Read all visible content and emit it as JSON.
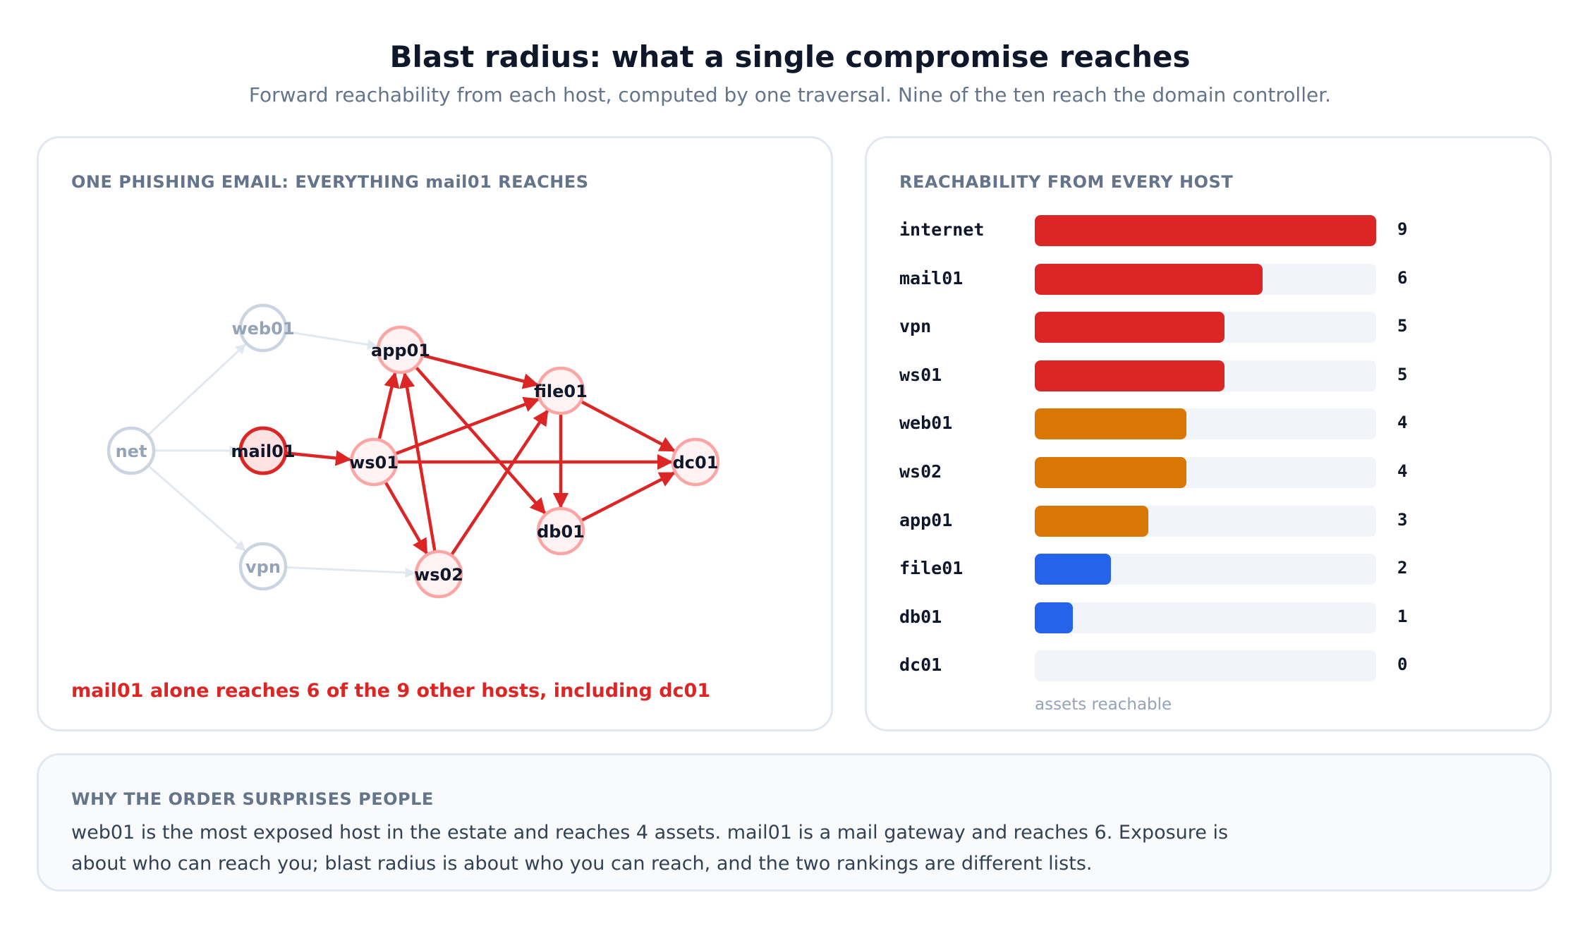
{
  "title": "Blast radius: what a single compromise reaches",
  "subtitle": "Forward reachability from each host, computed by one traversal. Nine of the ten reach the domain controller.",
  "graph_panel": {
    "heading": "ONE PHISHING EMAIL: EVERYTHING mail01 REACHES",
    "caption": "mail01 alone reaches 6 of the 9 other hosts, including dc01",
    "nodes": [
      {
        "id": "net",
        "label": "net",
        "state": "idle"
      },
      {
        "id": "web01",
        "label": "web01",
        "state": "idle"
      },
      {
        "id": "vpn",
        "label": "vpn",
        "state": "idle"
      },
      {
        "id": "mail01",
        "label": "mail01",
        "state": "source"
      },
      {
        "id": "app01",
        "label": "app01",
        "state": "reached"
      },
      {
        "id": "ws01",
        "label": "ws01",
        "state": "reached"
      },
      {
        "id": "ws02",
        "label": "ws02",
        "state": "reached"
      },
      {
        "id": "file01",
        "label": "file01",
        "state": "reached"
      },
      {
        "id": "db01",
        "label": "db01",
        "state": "reached"
      },
      {
        "id": "dc01",
        "label": "dc01",
        "state": "reached"
      }
    ],
    "edges": [
      {
        "from": "net",
        "to": "web01",
        "active": false
      },
      {
        "from": "net",
        "to": "mail01",
        "active": false
      },
      {
        "from": "net",
        "to": "vpn",
        "active": false
      },
      {
        "from": "web01",
        "to": "app01",
        "active": false
      },
      {
        "from": "vpn",
        "to": "ws02",
        "active": false
      },
      {
        "from": "mail01",
        "to": "ws01",
        "active": true
      },
      {
        "from": "ws01",
        "to": "file01",
        "active": true
      },
      {
        "from": "ws01",
        "to": "dc01",
        "active": true
      },
      {
        "from": "ws01",
        "to": "ws02",
        "active": true
      },
      {
        "from": "ws01",
        "to": "app01",
        "active": true
      },
      {
        "from": "ws02",
        "to": "app01",
        "active": true
      },
      {
        "from": "ws02",
        "to": "file01",
        "active": true
      },
      {
        "from": "app01",
        "to": "file01",
        "active": true
      },
      {
        "from": "app01",
        "to": "db01",
        "active": true
      },
      {
        "from": "file01",
        "to": "db01",
        "active": true
      },
      {
        "from": "file01",
        "to": "dc01",
        "active": true
      },
      {
        "from": "db01",
        "to": "dc01",
        "active": true
      }
    ]
  },
  "bars_panel": {
    "heading": "REACHABILITY FROM EVERY HOST",
    "axis_caption": "assets reachable",
    "max": 9,
    "rows": [
      {
        "host": "internet",
        "value": 9,
        "color": "#dc2626"
      },
      {
        "host": "mail01",
        "value": 6,
        "color": "#dc2626"
      },
      {
        "host": "vpn",
        "value": 5,
        "color": "#dc2626"
      },
      {
        "host": "ws01",
        "value": 5,
        "color": "#dc2626"
      },
      {
        "host": "web01",
        "value": 4,
        "color": "#d97706"
      },
      {
        "host": "ws02",
        "value": 4,
        "color": "#d97706"
      },
      {
        "host": "app01",
        "value": 3,
        "color": "#d97706"
      },
      {
        "host": "file01",
        "value": 2,
        "color": "#2563eb"
      },
      {
        "host": "db01",
        "value": 1,
        "color": "#2563eb"
      },
      {
        "host": "dc01",
        "value": 0,
        "color": "#2563eb"
      }
    ]
  },
  "note": {
    "heading": "WHY THE ORDER SURPRISES PEOPLE",
    "text": "web01 is the most exposed host in the estate and reaches 4 assets. mail01 is a mail gateway and reaches 6. Exposure is about who can reach you; blast radius is about who you can reach, and the two rankings are different lists."
  },
  "colors": {
    "active_edge": "#dc2626",
    "idle_edge": "#e2e8f0",
    "idle_node": "#cbd5e1",
    "reached_node_stroke": "#fca5a5",
    "reached_node_fill": "#fef2f2",
    "source_node_stroke": "#dc2626",
    "source_node_fill": "#fee2e2"
  }
}
